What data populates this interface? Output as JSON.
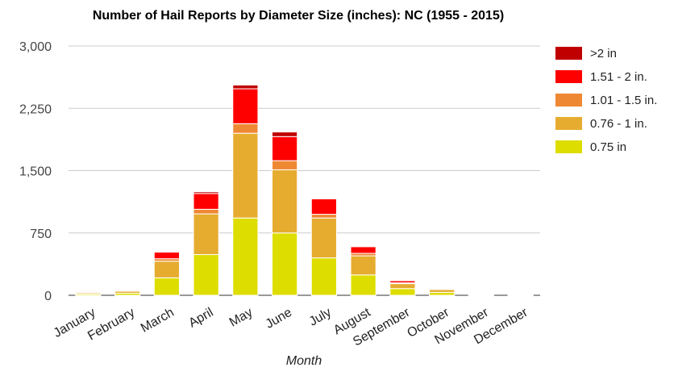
{
  "chart_data": {
    "type": "bar",
    "stacked": true,
    "title": "Number of Hail Reports by Diameter Size (inches): NC (1955 - 2015)",
    "xlabel": "Month",
    "ylabel": "",
    "ylim": [
      0,
      3000
    ],
    "yticks": [
      0,
      750,
      1500,
      2250,
      3000
    ],
    "ytick_labels": [
      "0",
      "750",
      "1,500",
      "2,250",
      "3,000"
    ],
    "grid": true,
    "legend_position": "right",
    "categories": [
      "January",
      "February",
      "March",
      "April",
      "May",
      "June",
      "July",
      "August",
      "September",
      "October",
      "November",
      "December"
    ],
    "series": [
      {
        "name": "0.75 in",
        "color": "#dedd00",
        "values": [
          15,
          25,
          210,
          490,
          930,
          750,
          450,
          245,
          80,
          35,
          5,
          3
        ]
      },
      {
        "name": "0.76 - 1 in.",
        "color": "#e6ac30",
        "values": [
          15,
          25,
          200,
          490,
          1020,
          760,
          480,
          230,
          60,
          35,
          5,
          5
        ]
      },
      {
        "name": "1.01 - 1.5 in.",
        "color": "#ef8833",
        "values": [
          5,
          8,
          30,
          55,
          115,
          110,
          45,
          30,
          10,
          5,
          2,
          2
        ]
      },
      {
        "name": "1.51 - 2 in.",
        "color": "#ff0000",
        "values": [
          10,
          10,
          80,
          190,
          420,
          290,
          185,
          80,
          25,
          10,
          2,
          2
        ]
      },
      {
        "name": ">2 in",
        "color": "#c00000",
        "values": [
          0,
          0,
          10,
          20,
          45,
          55,
          0,
          10,
          5,
          0,
          0,
          0
        ]
      }
    ]
  }
}
